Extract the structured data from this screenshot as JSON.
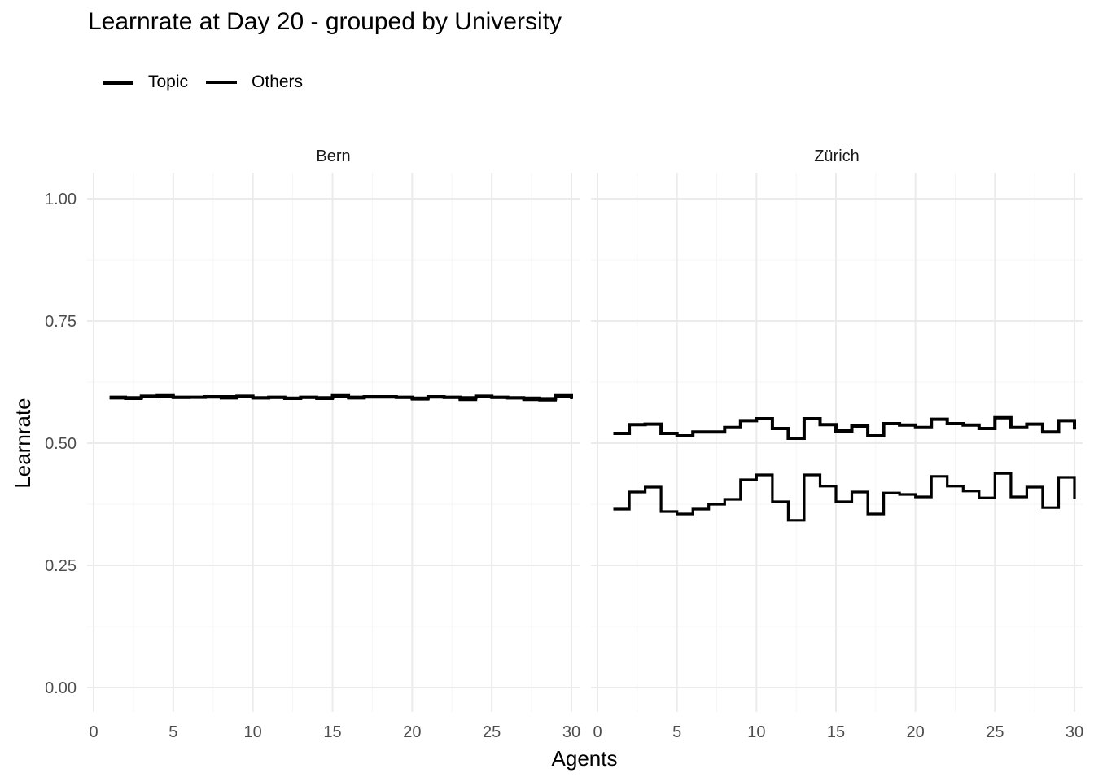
{
  "chart_data": {
    "type": "line",
    "step": true,
    "title": "Learnrate at Day 20 - grouped by University",
    "xlabel": "Agents",
    "ylabel": "Learnrate",
    "xlim": [
      0,
      30
    ],
    "ylim": [
      0,
      1
    ],
    "x_ticks": [
      "0",
      "5",
      "10",
      "15",
      "20",
      "25",
      "30"
    ],
    "y_ticks": [
      "0.00",
      "0.25",
      "0.50",
      "0.75",
      "1.00"
    ],
    "grid": true,
    "legend_position": "top-left",
    "legend": [
      {
        "name": "Topic",
        "style": "thick"
      },
      {
        "name": "Others",
        "style": "medium"
      }
    ],
    "x": [
      1,
      2,
      3,
      4,
      5,
      6,
      7,
      8,
      9,
      10,
      11,
      12,
      13,
      14,
      15,
      16,
      17,
      18,
      19,
      20,
      21,
      22,
      23,
      24,
      25,
      26,
      27,
      28,
      29,
      30
    ],
    "panels": [
      {
        "name": "Bern",
        "series": [
          {
            "name": "Topic",
            "values": [
              0.594,
              0.593,
              0.596,
              0.597,
              0.594,
              0.594,
              0.595,
              0.595,
              0.596,
              0.593,
              0.594,
              0.592,
              0.594,
              0.593,
              0.597,
              0.594,
              0.595,
              0.595,
              0.594,
              0.592,
              0.595,
              0.594,
              0.593,
              0.596,
              0.594,
              0.593,
              0.592,
              0.591,
              0.597,
              0.591
            ]
          },
          {
            "name": "Others",
            "values": [
              0.592,
              0.591,
              0.595,
              0.596,
              0.593,
              0.594,
              0.594,
              0.592,
              0.595,
              0.592,
              0.593,
              0.591,
              0.593,
              0.591,
              0.595,
              0.592,
              0.594,
              0.594,
              0.593,
              0.59,
              0.594,
              0.593,
              0.589,
              0.595,
              0.593,
              0.592,
              0.589,
              0.588,
              0.596,
              0.59
            ]
          }
        ]
      },
      {
        "name": "Zürich",
        "series": [
          {
            "name": "Topic",
            "values": [
              0.52,
              0.538,
              0.539,
              0.52,
              0.515,
              0.523,
              0.523,
              0.532,
              0.546,
              0.55,
              0.53,
              0.51,
              0.55,
              0.538,
              0.525,
              0.535,
              0.515,
              0.54,
              0.537,
              0.532,
              0.549,
              0.54,
              0.537,
              0.53,
              0.552,
              0.532,
              0.539,
              0.523,
              0.546,
              0.528
            ]
          },
          {
            "name": "Others",
            "values": [
              0.365,
              0.4,
              0.41,
              0.36,
              0.355,
              0.365,
              0.375,
              0.385,
              0.425,
              0.435,
              0.38,
              0.342,
              0.435,
              0.412,
              0.38,
              0.4,
              0.355,
              0.398,
              0.395,
              0.39,
              0.432,
              0.412,
              0.402,
              0.388,
              0.438,
              0.39,
              0.41,
              0.368,
              0.43,
              0.385
            ]
          }
        ]
      }
    ]
  },
  "colors": {
    "line": "#000000",
    "grid_major": "#ebebeb",
    "grid_minor": "#f5f5f5",
    "tick_text": "#4d4d4d"
  }
}
